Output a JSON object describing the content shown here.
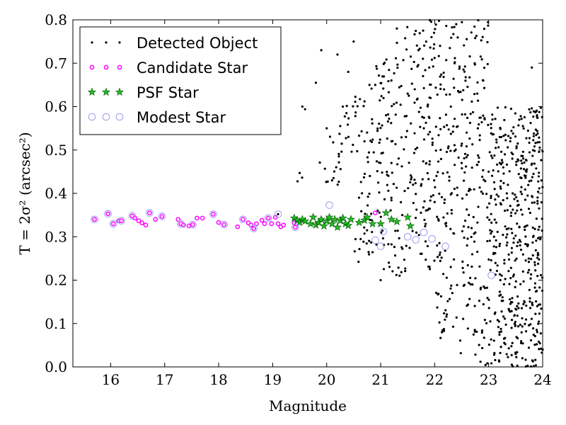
{
  "chart_data": {
    "type": "scatter",
    "title": "",
    "xlabel": "Magnitude",
    "ylabel": "T = 2σ² (arcsec²)",
    "xlim": [
      15.3,
      24
    ],
    "ylim": [
      0.0,
      0.8
    ],
    "xticks": [
      "16",
      "17",
      "18",
      "19",
      "20",
      "21",
      "22",
      "23",
      "24"
    ],
    "yticks": [
      "0.0",
      "0.1",
      "0.2",
      "0.3",
      "0.4",
      "0.5",
      "0.6",
      "0.7",
      "0.8"
    ],
    "grid": false,
    "legend_position": "top-left",
    "series": [
      {
        "name": "Detected Object",
        "marker": "dot",
        "color": "#000000",
        "note_on_data": "Dense cloud of faint objects; sample shown, approximate values",
        "points_sparse": [
          [
            19.1,
            0.352
          ],
          [
            19.5,
            0.447
          ],
          [
            19.55,
            0.6
          ],
          [
            19.6,
            0.594
          ],
          [
            19.8,
            0.655
          ],
          [
            19.9,
            0.73
          ],
          [
            20.0,
            0.55
          ],
          [
            20.1,
            0.43
          ],
          [
            20.2,
            0.72
          ],
          [
            20.3,
            0.6
          ],
          [
            20.4,
            0.68
          ],
          [
            20.5,
            0.75
          ],
          [
            20.6,
            0.39
          ],
          [
            20.7,
            0.52
          ],
          [
            20.8,
            0.44
          ],
          [
            20.9,
            0.65
          ],
          [
            21.0,
            0.2
          ],
          [
            21.1,
            0.58
          ],
          [
            21.2,
            0.47
          ],
          [
            21.3,
            0.78
          ],
          [
            21.4,
            0.35
          ],
          [
            21.5,
            0.63
          ],
          [
            21.6,
            0.42
          ],
          [
            21.7,
            0.73
          ],
          [
            21.8,
            0.55
          ],
          [
            21.9,
            0.69
          ],
          [
            22.0,
            0.38
          ],
          [
            22.1,
            0.74
          ],
          [
            22.2,
            0.33
          ],
          [
            22.3,
            0.6
          ],
          [
            22.4,
            0.79
          ],
          [
            22.5,
            0.47
          ],
          [
            22.6,
            0.28
          ],
          [
            22.7,
            0.19
          ],
          [
            22.8,
            0.55
          ],
          [
            22.9,
            0.66
          ],
          [
            23.0,
            0.45
          ],
          [
            23.1,
            0.3
          ],
          [
            23.2,
            0.08
          ],
          [
            23.3,
            0.36
          ],
          [
            23.4,
            0.52
          ],
          [
            23.5,
            0.03
          ],
          [
            23.6,
            0.27
          ],
          [
            23.7,
            0.45
          ],
          [
            23.8,
            0.69
          ],
          [
            23.9,
            0.14
          ],
          [
            24.0,
            0.04
          ]
        ]
      },
      {
        "name": "Candidate Star",
        "marker": "circle",
        "color": "#ff00ff",
        "points": [
          [
            15.7,
            0.34
          ],
          [
            15.95,
            0.353
          ],
          [
            16.05,
            0.33
          ],
          [
            16.15,
            0.337
          ],
          [
            16.2,
            0.337
          ],
          [
            16.4,
            0.348
          ],
          [
            16.45,
            0.343
          ],
          [
            16.52,
            0.337
          ],
          [
            16.58,
            0.332
          ],
          [
            16.65,
            0.327
          ],
          [
            16.72,
            0.355
          ],
          [
            16.83,
            0.34
          ],
          [
            16.95,
            0.347
          ],
          [
            17.25,
            0.34
          ],
          [
            17.3,
            0.33
          ],
          [
            17.35,
            0.327
          ],
          [
            17.45,
            0.325
          ],
          [
            17.52,
            0.328
          ],
          [
            17.6,
            0.343
          ],
          [
            17.7,
            0.343
          ],
          [
            17.9,
            0.352
          ],
          [
            18.0,
            0.333
          ],
          [
            18.1,
            0.328
          ],
          [
            18.35,
            0.323
          ],
          [
            18.45,
            0.34
          ],
          [
            18.55,
            0.332
          ],
          [
            18.6,
            0.327
          ],
          [
            18.65,
            0.319
          ],
          [
            18.7,
            0.33
          ],
          [
            18.8,
            0.338
          ],
          [
            18.85,
            0.33
          ],
          [
            18.92,
            0.343
          ],
          [
            18.98,
            0.33
          ],
          [
            19.05,
            0.345
          ],
          [
            19.1,
            0.33
          ],
          [
            19.15,
            0.323
          ],
          [
            19.2,
            0.327
          ],
          [
            19.4,
            0.332
          ],
          [
            19.42,
            0.322
          ],
          [
            20.9,
            0.355
          ]
        ]
      },
      {
        "name": "PSF Star",
        "marker": "star",
        "color": "#00aa00",
        "points": [
          [
            19.4,
            0.343
          ],
          [
            19.45,
            0.338
          ],
          [
            19.5,
            0.333
          ],
          [
            19.55,
            0.34
          ],
          [
            19.6,
            0.336
          ],
          [
            19.7,
            0.33
          ],
          [
            19.75,
            0.345
          ],
          [
            19.8,
            0.327
          ],
          [
            19.85,
            0.333
          ],
          [
            19.9,
            0.34
          ],
          [
            19.95,
            0.325
          ],
          [
            20.0,
            0.336
          ],
          [
            20.05,
            0.345
          ],
          [
            20.1,
            0.33
          ],
          [
            20.15,
            0.34
          ],
          [
            20.2,
            0.322
          ],
          [
            20.25,
            0.337
          ],
          [
            20.3,
            0.343
          ],
          [
            20.35,
            0.33
          ],
          [
            20.4,
            0.326
          ],
          [
            20.45,
            0.34
          ],
          [
            20.6,
            0.333
          ],
          [
            20.7,
            0.338
          ],
          [
            20.75,
            0.345
          ],
          [
            20.85,
            0.33
          ],
          [
            21.0,
            0.33
          ],
          [
            21.1,
            0.355
          ],
          [
            21.2,
            0.34
          ],
          [
            21.3,
            0.335
          ],
          [
            21.5,
            0.345
          ],
          [
            21.55,
            0.325
          ]
        ]
      },
      {
        "name": "Modest Star",
        "marker": "hollow-circle",
        "color": "#9999ee",
        "points": [
          [
            15.7,
            0.34
          ],
          [
            15.95,
            0.353
          ],
          [
            16.05,
            0.33
          ],
          [
            16.2,
            0.337
          ],
          [
            16.4,
            0.348
          ],
          [
            16.72,
            0.355
          ],
          [
            16.95,
            0.347
          ],
          [
            17.3,
            0.33
          ],
          [
            17.52,
            0.328
          ],
          [
            17.9,
            0.352
          ],
          [
            18.1,
            0.328
          ],
          [
            18.45,
            0.34
          ],
          [
            18.65,
            0.319
          ],
          [
            18.92,
            0.343
          ],
          [
            19.1,
            0.352
          ],
          [
            19.42,
            0.322
          ],
          [
            20.05,
            0.373
          ],
          [
            20.9,
            0.292
          ],
          [
            21.0,
            0.278
          ],
          [
            21.05,
            0.312
          ],
          [
            21.5,
            0.3
          ],
          [
            21.65,
            0.293
          ],
          [
            21.8,
            0.31
          ],
          [
            21.95,
            0.295
          ],
          [
            22.2,
            0.278
          ],
          [
            23.05,
            0.211
          ]
        ]
      }
    ]
  },
  "legend": [
    {
      "label": "Detected Object",
      "marker": "dot",
      "color": "#000000"
    },
    {
      "label": "Candidate Star",
      "marker": "circle",
      "color": "#ff00ff"
    },
    {
      "label": "PSF Star",
      "marker": "star",
      "color": "#00aa00"
    },
    {
      "label": "Modest Star",
      "marker": "hollow-circle",
      "color": "#9999ee"
    }
  ]
}
